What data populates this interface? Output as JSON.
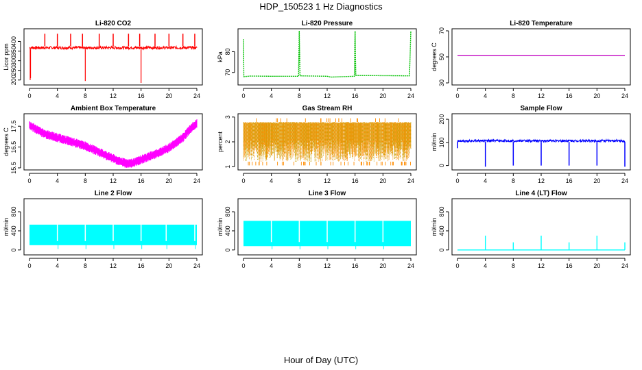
{
  "figure": {
    "title": "HDP_150523  1 Hz Diagnostics",
    "xlabel": "Hour of Day (UTC)"
  },
  "chart_data": [
    {
      "type": "line",
      "title": "Li-820 CO2",
      "ylabel": "Licor ppm",
      "color": "#ff0000",
      "xlim": [
        0,
        24
      ],
      "xticks": [
        0,
        4,
        8,
        12,
        16,
        20,
        24
      ],
      "ylim": [
        185,
        455
      ],
      "yticks": [
        200,
        250,
        300,
        350,
        400
      ],
      "series": [
        {
          "name": "CO2",
          "baseline": [
            360,
            375
          ],
          "spikes_up": [
            [
              2.2,
              440
            ],
            [
              4,
              440
            ],
            [
              5.9,
              440
            ],
            [
              7.6,
              440
            ],
            [
              10,
              440
            ],
            [
              12,
              440
            ],
            [
              14.2,
              440
            ],
            [
              15.8,
              440
            ],
            [
              18,
              440
            ],
            [
              20,
              440
            ],
            [
              22,
              440
            ],
            [
              23.7,
              440
            ]
          ],
          "spikes_down": [
            [
              0.1,
              200
            ],
            [
              0.15,
              210
            ],
            [
              8,
              195
            ],
            [
              16,
              185
            ]
          ]
        }
      ]
    },
    {
      "type": "line",
      "title": "Li-820 Pressure",
      "ylabel": "kPa",
      "color": "#00c000",
      "xlim": [
        0,
        24
      ],
      "xticks": [
        0,
        4,
        8,
        12,
        16,
        20,
        24
      ],
      "ylim": [
        65,
        90
      ],
      "yticks": [
        70,
        80
      ],
      "series": [
        {
          "name": "Pressure",
          "points": [
            [
              0,
              86
            ],
            [
              0.05,
              68
            ],
            [
              1,
              68.3
            ],
            [
              4,
              68.2
            ],
            [
              7.9,
              68.2
            ],
            [
              8,
              90
            ],
            [
              8.1,
              68.4
            ],
            [
              12,
              68.2
            ],
            [
              12.5,
              67.8
            ],
            [
              15.9,
              68.2
            ],
            [
              16,
              90
            ],
            [
              16.1,
              68.6
            ],
            [
              20,
              68.5
            ],
            [
              23.8,
              68.4
            ],
            [
              24,
              90
            ]
          ]
        }
      ]
    },
    {
      "type": "line",
      "title": "Li-820 Temperature",
      "ylabel": "degrees C",
      "color": "#c000c0",
      "xlim": [
        0,
        24
      ],
      "xticks": [
        0,
        4,
        8,
        12,
        16,
        20,
        24
      ],
      "ylim": [
        30,
        70
      ],
      "yticks": [
        30,
        50,
        70
      ],
      "series": [
        {
          "name": "Temperature",
          "points": [
            [
              0,
              51
            ],
            [
              24,
              51
            ]
          ]
        }
      ]
    },
    {
      "type": "line",
      "title": "Ambient Box Temperature",
      "ylabel": "degrees C",
      "color": "#ff00ff",
      "xlim": [
        0,
        24
      ],
      "xticks": [
        0,
        4,
        8,
        12,
        16,
        20,
        24
      ],
      "ylim": [
        15.5,
        18.0
      ],
      "yticks": [
        15.5,
        16.5,
        17.5
      ],
      "series": [
        {
          "name": "Box Temperature",
          "points": [
            [
              0,
              17.55
            ],
            [
              1,
              17.35
            ],
            [
              2,
              17.15
            ],
            [
              4,
              16.95
            ],
            [
              6,
              16.75
            ],
            [
              8,
              16.55
            ],
            [
              10,
              16.25
            ],
            [
              12,
              15.95
            ],
            [
              13,
              15.8
            ],
            [
              14,
              15.7
            ],
            [
              15,
              15.75
            ],
            [
              16,
              15.9
            ],
            [
              18,
              16.15
            ],
            [
              20,
              16.45
            ],
            [
              22,
              16.95
            ],
            [
              23,
              17.35
            ],
            [
              24,
              17.65
            ]
          ],
          "band": 0.22
        }
      ]
    },
    {
      "type": "scatter",
      "title": "Gas Stream RH",
      "ylabel": "percent",
      "color": "#ff8c00",
      "color_secondary": "#c8a000",
      "xlim": [
        0,
        24
      ],
      "xticks": [
        0,
        4,
        8,
        12,
        16,
        20,
        24
      ],
      "ylim": [
        0.95,
        3.05
      ],
      "yticks": [
        1.0,
        2.0,
        3.0
      ],
      "series": [
        {
          "name": "RH",
          "upper": 2.8,
          "lower": 1.2,
          "outliers_high": 2.95,
          "outliers_low": 1.05
        }
      ]
    },
    {
      "type": "line",
      "title": "Sample Flow",
      "ylabel": "ml/min",
      "color": "#0000ff",
      "xlim": [
        0,
        24
      ],
      "xticks": [
        0,
        4,
        8,
        12,
        16,
        20,
        24
      ],
      "ylim": [
        -10,
        215
      ],
      "yticks": [
        0,
        100,
        200
      ],
      "series": [
        {
          "name": "Sample Flow",
          "baseline": [
            102,
            112
          ],
          "dips": [
            [
              0,
              75
            ],
            [
              4,
              -5
            ],
            [
              8,
              0
            ],
            [
              12,
              0
            ],
            [
              16,
              0
            ],
            [
              20,
              0
            ],
            [
              24,
              -5
            ]
          ]
        }
      ]
    },
    {
      "type": "area",
      "title": "Line 2 Flow",
      "ylabel": "ml/min",
      "color": "#00ffff",
      "xlim": [
        0,
        24
      ],
      "xticks": [
        0,
        4,
        8,
        12,
        16,
        20,
        24
      ],
      "ylim": [
        -60,
        1030
      ],
      "yticks": [
        0,
        400,
        800
      ],
      "series": [
        {
          "name": "Line 2",
          "upper": 530,
          "lower": 100,
          "gaps": [
            4,
            8,
            12,
            16,
            19.6,
            23.7
          ],
          "end": 24
        }
      ]
    },
    {
      "type": "area",
      "title": "Line 3 Flow",
      "ylabel": "ml/min",
      "color": "#00ffff",
      "xlim": [
        0,
        24
      ],
      "xticks": [
        0,
        4,
        8,
        12,
        16,
        20,
        24
      ],
      "ylim": [
        -60,
        1030
      ],
      "yticks": [
        0,
        400,
        800
      ],
      "series": [
        {
          "name": "Line 3",
          "upper": 610,
          "lower": 80,
          "gaps": [
            4,
            8,
            12,
            16,
            20
          ],
          "end": 24
        }
      ]
    },
    {
      "type": "line",
      "title": "Line 4 (LT) Flow",
      "ylabel": "ml/min",
      "color": "#00ffff",
      "xlim": [
        0,
        24
      ],
      "xticks": [
        0,
        4,
        8,
        12,
        16,
        20,
        24
      ],
      "ylim": [
        -60,
        1030
      ],
      "yticks": [
        0,
        400,
        800
      ],
      "series": [
        {
          "name": "Line 4",
          "baseline": 0,
          "spikes_up": [
            [
              4,
              300
            ],
            [
              8,
              160
            ],
            [
              12,
              300
            ],
            [
              16,
              160
            ],
            [
              20,
              300
            ],
            [
              24,
              160
            ]
          ]
        }
      ]
    }
  ]
}
